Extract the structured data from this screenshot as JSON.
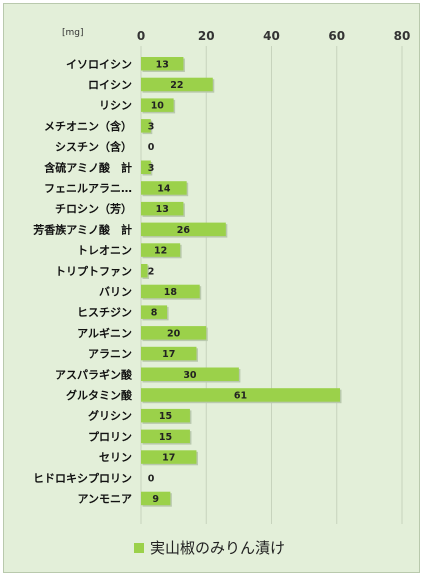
{
  "chart_data": {
    "type": "bar",
    "orientation": "horizontal",
    "unit_label": "[mg]",
    "xlim": [
      0,
      80
    ],
    "xticks": [
      0,
      20,
      40,
      60,
      80
    ],
    "grid": "vertical",
    "legend_position": "bottom",
    "bar_color": "#9bd14a",
    "categories": [
      "イソロイシン",
      "ロイシン",
      "リシン",
      "メチオニン（含）",
      "シスチン（含）",
      "含硫アミノ酸　計",
      "フェニルアラニ…",
      "チロシン（芳）",
      "芳香族アミノ酸　計",
      "トレオニン",
      "トリプトファン",
      "バリン",
      "ヒスチジン",
      "アルギニン",
      "アラニン",
      "アスパラギン酸",
      "グルタミン酸",
      "グリシン",
      "プロリン",
      "セリン",
      "ヒドロキシプロリン",
      "アンモニア"
    ],
    "series": [
      {
        "name": "実山椒のみりん漬け",
        "values": [
          13,
          22,
          10,
          3,
          0,
          3,
          14,
          13,
          26,
          12,
          2,
          18,
          8,
          20,
          17,
          30,
          61,
          15,
          15,
          17,
          0,
          9
        ]
      }
    ]
  }
}
